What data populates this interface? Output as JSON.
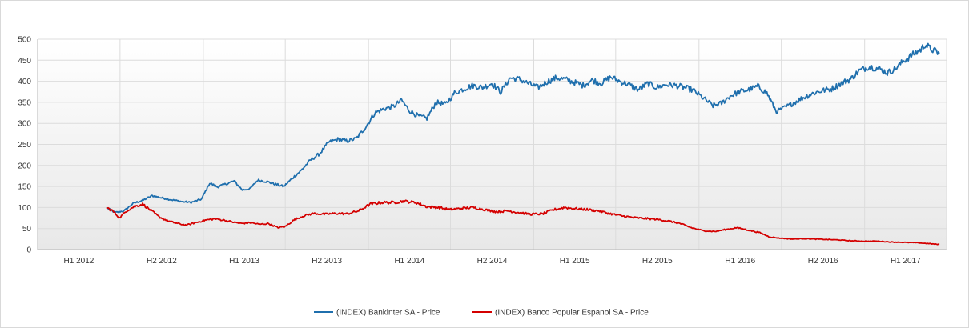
{
  "chart_data": {
    "type": "line",
    "title": "",
    "xlabel": "",
    "ylabel": "",
    "ylim": [
      0,
      500
    ],
    "yticks": [
      0,
      50,
      100,
      150,
      200,
      250,
      300,
      350,
      400,
      450,
      500
    ],
    "xlim": [
      "2012-01-01",
      "2017-07-01"
    ],
    "x_tick_labels": [
      "H1 2012",
      "H2 2012",
      "H1 2013",
      "H2 2013",
      "H1 2014",
      "H2 2014",
      "H1 2015",
      "H2 2015",
      "H1 2016",
      "H2 2016",
      "H1 2017"
    ],
    "grid": true,
    "legend_position": "bottom-center",
    "series": [
      {
        "name": "(INDEX) Bankinter SA - Price",
        "color": "#1f6fad",
        "points": [
          [
            "2012-06-01",
            100
          ],
          [
            "2012-06-20",
            88
          ],
          [
            "2012-07-10",
            92
          ],
          [
            "2012-07-30",
            110
          ],
          [
            "2012-08-20",
            117
          ],
          [
            "2012-09-10",
            128
          ],
          [
            "2012-10-01",
            123
          ],
          [
            "2012-10-25",
            118
          ],
          [
            "2012-11-15",
            114
          ],
          [
            "2012-12-05",
            112
          ],
          [
            "2012-12-28",
            120
          ],
          [
            "2013-01-15",
            158
          ],
          [
            "2013-02-01",
            149
          ],
          [
            "2013-02-20",
            156
          ],
          [
            "2013-03-10",
            163
          ],
          [
            "2013-03-28",
            142
          ],
          [
            "2013-04-15",
            145
          ],
          [
            "2013-05-01",
            165
          ],
          [
            "2013-05-20",
            162
          ],
          [
            "2013-06-10",
            155
          ],
          [
            "2013-06-28",
            150
          ],
          [
            "2013-07-15",
            168
          ],
          [
            "2013-08-05",
            188
          ],
          [
            "2013-08-25",
            212
          ],
          [
            "2013-09-15",
            228
          ],
          [
            "2013-10-05",
            255
          ],
          [
            "2013-10-25",
            262
          ],
          [
            "2013-11-15",
            258
          ],
          [
            "2013-12-05",
            264
          ],
          [
            "2013-12-25",
            290
          ],
          [
            "2014-01-15",
            325
          ],
          [
            "2014-02-05",
            335
          ],
          [
            "2014-02-25",
            340
          ],
          [
            "2014-03-15",
            355
          ],
          [
            "2014-04-01",
            330
          ],
          [
            "2014-04-20",
            318
          ],
          [
            "2014-05-10",
            312
          ],
          [
            "2014-05-30",
            350
          ],
          [
            "2014-06-20",
            345
          ],
          [
            "2014-07-10",
            372
          ],
          [
            "2014-07-30",
            382
          ],
          [
            "2014-08-20",
            390
          ],
          [
            "2014-09-10",
            385
          ],
          [
            "2014-09-30",
            395
          ],
          [
            "2014-10-20",
            375
          ],
          [
            "2014-11-10",
            408
          ],
          [
            "2014-11-30",
            405
          ],
          [
            "2014-12-20",
            395
          ],
          [
            "2015-01-10",
            385
          ],
          [
            "2015-02-01",
            400
          ],
          [
            "2015-02-20",
            408
          ],
          [
            "2015-03-10",
            405
          ],
          [
            "2015-03-30",
            398
          ],
          [
            "2015-04-20",
            390
          ],
          [
            "2015-05-10",
            403
          ],
          [
            "2015-05-30",
            395
          ],
          [
            "2015-06-20",
            410
          ],
          [
            "2015-07-10",
            400
          ],
          [
            "2015-07-30",
            392
          ],
          [
            "2015-08-20",
            380
          ],
          [
            "2015-09-10",
            395
          ],
          [
            "2015-09-30",
            385
          ],
          [
            "2015-10-20",
            392
          ],
          [
            "2015-11-10",
            390
          ],
          [
            "2015-12-01",
            385
          ],
          [
            "2015-12-20",
            378
          ],
          [
            "2016-01-10",
            360
          ],
          [
            "2016-02-01",
            342
          ],
          [
            "2016-02-20",
            348
          ],
          [
            "2016-03-10",
            365
          ],
          [
            "2016-03-30",
            375
          ],
          [
            "2016-04-20",
            380
          ],
          [
            "2016-05-10",
            388
          ],
          [
            "2016-05-30",
            372
          ],
          [
            "2016-06-20",
            328
          ],
          [
            "2016-07-10",
            338
          ],
          [
            "2016-07-30",
            350
          ],
          [
            "2016-08-20",
            362
          ],
          [
            "2016-09-10",
            372
          ],
          [
            "2016-09-30",
            378
          ],
          [
            "2016-10-20",
            382
          ],
          [
            "2016-11-10",
            395
          ],
          [
            "2016-12-01",
            405
          ],
          [
            "2016-12-20",
            425
          ],
          [
            "2017-01-10",
            435
          ],
          [
            "2017-02-01",
            430
          ],
          [
            "2017-02-20",
            420
          ],
          [
            "2017-03-10",
            430
          ],
          [
            "2017-03-30",
            450
          ],
          [
            "2017-04-20",
            465
          ],
          [
            "2017-05-05",
            475
          ],
          [
            "2017-05-15",
            488
          ],
          [
            "2017-05-25",
            478
          ],
          [
            "2017-06-05",
            472
          ],
          [
            "2017-06-15",
            466
          ]
        ]
      },
      {
        "name": "(INDEX) Banco Popular Espanol SA - Price",
        "color": "#d40000",
        "points": [
          [
            "2012-06-01",
            100
          ],
          [
            "2012-06-15",
            92
          ],
          [
            "2012-06-30",
            75
          ],
          [
            "2012-07-15",
            92
          ],
          [
            "2012-08-01",
            102
          ],
          [
            "2012-08-20",
            108
          ],
          [
            "2012-09-05",
            95
          ],
          [
            "2012-09-25",
            78
          ],
          [
            "2012-10-15",
            68
          ],
          [
            "2012-11-05",
            62
          ],
          [
            "2012-11-25",
            58
          ],
          [
            "2012-12-15",
            64
          ],
          [
            "2013-01-05",
            70
          ],
          [
            "2013-01-25",
            73
          ],
          [
            "2013-02-15",
            70
          ],
          [
            "2013-03-05",
            66
          ],
          [
            "2013-03-25",
            62
          ],
          [
            "2013-04-15",
            64
          ],
          [
            "2013-05-05",
            60
          ],
          [
            "2013-05-25",
            62
          ],
          [
            "2013-06-15",
            52
          ],
          [
            "2013-07-01",
            55
          ],
          [
            "2013-07-20",
            70
          ],
          [
            "2013-08-10",
            80
          ],
          [
            "2013-09-01",
            86
          ],
          [
            "2013-09-25",
            84
          ],
          [
            "2013-10-20",
            86
          ],
          [
            "2013-11-15",
            85
          ],
          [
            "2013-12-10",
            92
          ],
          [
            "2014-01-05",
            108
          ],
          [
            "2014-01-30",
            112
          ],
          [
            "2014-02-25",
            112
          ],
          [
            "2014-03-20",
            115
          ],
          [
            "2014-04-15",
            112
          ],
          [
            "2014-05-10",
            102
          ],
          [
            "2014-06-05",
            100
          ],
          [
            "2014-06-30",
            95
          ],
          [
            "2014-07-25",
            98
          ],
          [
            "2014-08-20",
            100
          ],
          [
            "2014-09-15",
            95
          ],
          [
            "2014-10-10",
            90
          ],
          [
            "2014-11-05",
            92
          ],
          [
            "2014-11-30",
            88
          ],
          [
            "2014-12-25",
            84
          ],
          [
            "2015-01-20",
            85
          ],
          [
            "2015-02-15",
            95
          ],
          [
            "2015-03-10",
            100
          ],
          [
            "2015-04-05",
            97
          ],
          [
            "2015-05-01",
            95
          ],
          [
            "2015-05-25",
            92
          ],
          [
            "2015-06-20",
            85
          ],
          [
            "2015-07-15",
            80
          ],
          [
            "2015-08-10",
            76
          ],
          [
            "2015-09-05",
            74
          ],
          [
            "2015-09-30",
            72
          ],
          [
            "2015-10-25",
            68
          ],
          [
            "2015-11-20",
            62
          ],
          [
            "2015-12-15",
            52
          ],
          [
            "2016-01-10",
            45
          ],
          [
            "2016-02-05",
            43
          ],
          [
            "2016-03-01",
            48
          ],
          [
            "2016-03-25",
            52
          ],
          [
            "2016-04-20",
            46
          ],
          [
            "2016-05-15",
            40
          ],
          [
            "2016-06-05",
            30
          ],
          [
            "2016-06-30",
            27
          ],
          [
            "2016-07-25",
            25
          ],
          [
            "2016-08-20",
            26
          ],
          [
            "2016-09-15",
            25
          ],
          [
            "2016-10-10",
            24
          ],
          [
            "2016-11-05",
            23
          ],
          [
            "2016-11-30",
            21
          ],
          [
            "2017-01-01",
            20
          ],
          [
            "2017-02-01",
            20
          ],
          [
            "2017-03-01",
            18
          ],
          [
            "2017-04-01",
            17
          ],
          [
            "2017-05-01",
            16
          ],
          [
            "2017-05-25",
            14
          ],
          [
            "2017-06-15",
            12
          ]
        ]
      }
    ]
  }
}
